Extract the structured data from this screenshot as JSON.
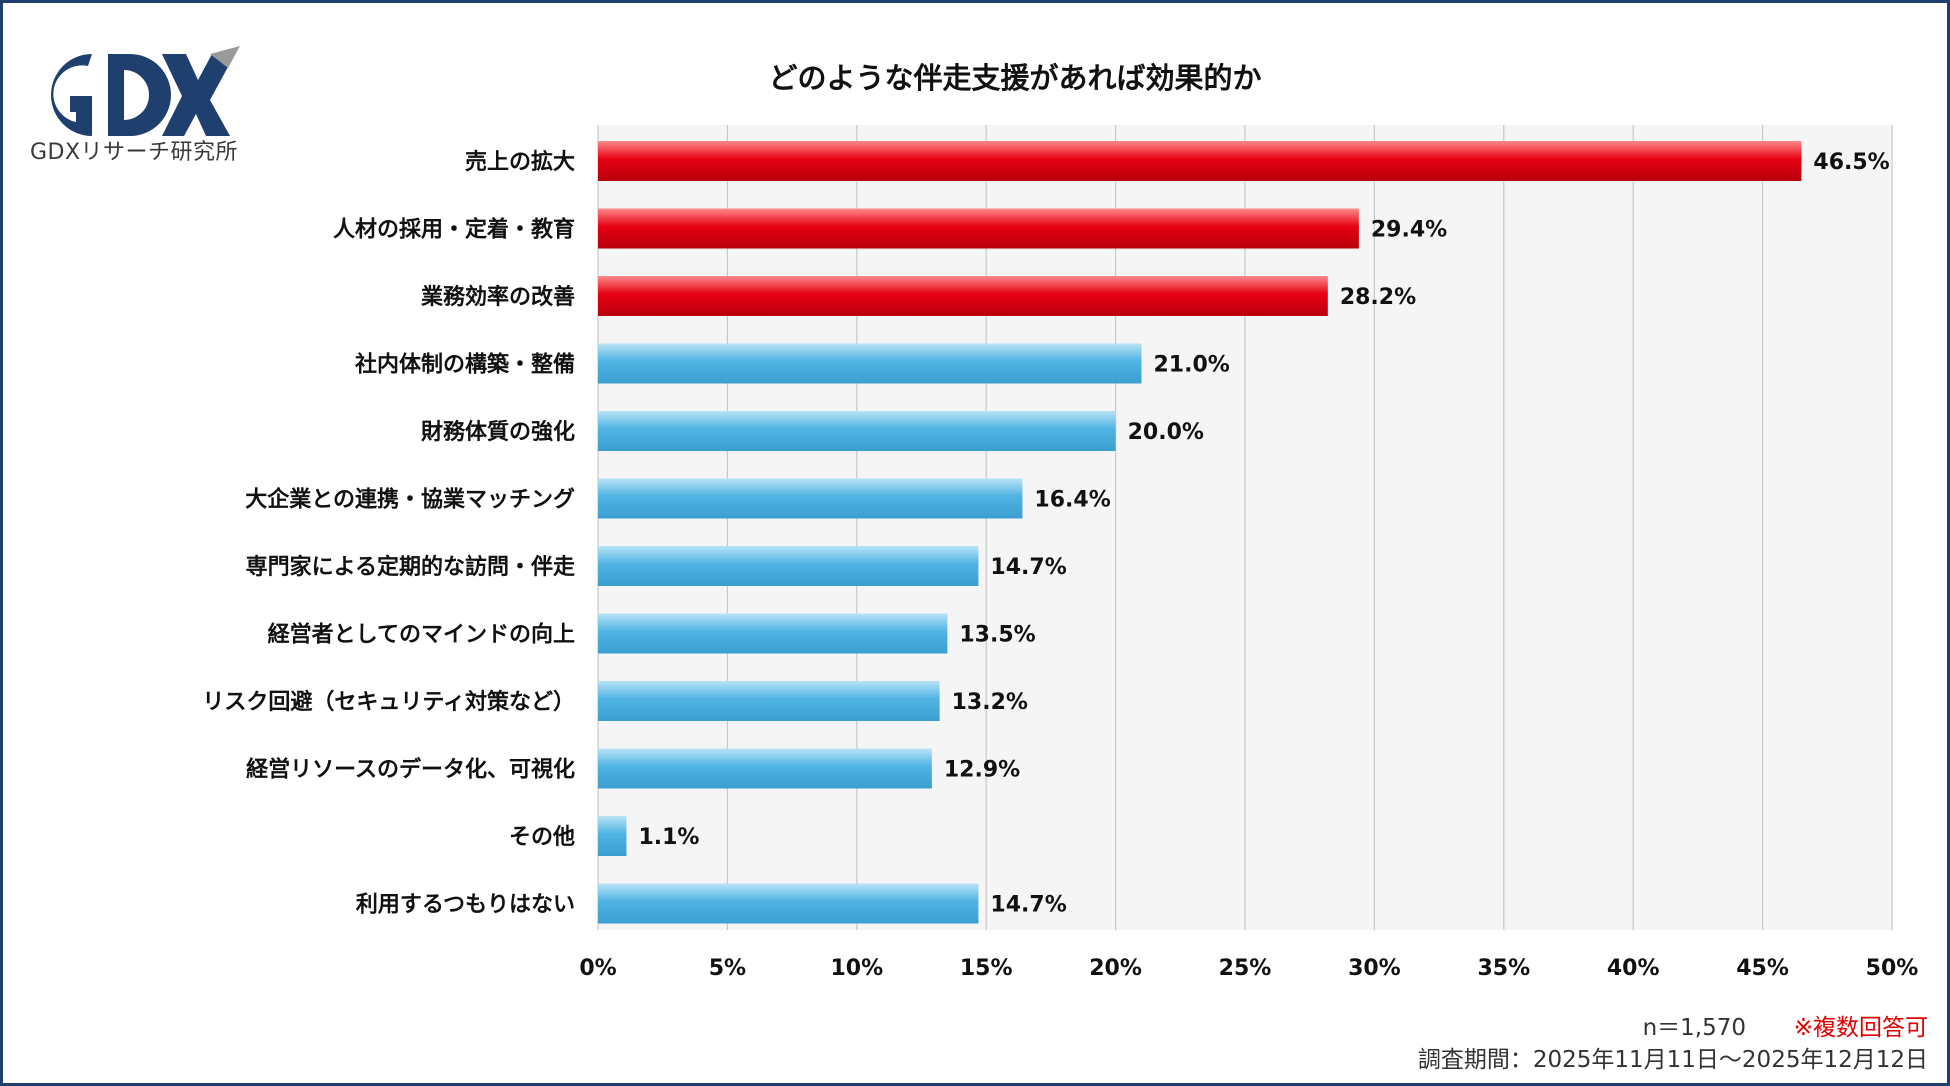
{
  "logo": {
    "mark_text": "GDX",
    "caption": "GDXリサーチ研究所",
    "colors": {
      "primary": "#1f3f6e",
      "accent": "#9a9a9a"
    }
  },
  "notes": {
    "sample_size": "n＝1,570",
    "multiple_answers": "※複数回答可",
    "survey_period": "調査期間：2025年11月11日～2025年12月12日"
  },
  "chart_data": {
    "type": "bar",
    "orientation": "horizontal",
    "title": "どのような伴走支援があれば効果的か",
    "xlabel": "",
    "ylabel": "",
    "xlim": [
      0,
      50
    ],
    "x_ticks": [
      "0%",
      "5%",
      "10%",
      "15%",
      "20%",
      "25%",
      "30%",
      "35%",
      "40%",
      "45%",
      "50%"
    ],
    "grid": "vertical",
    "categories": [
      "売上の拡大",
      "人材の採用・定着・教育",
      "業務効率の改善",
      "社内体制の構築・整備",
      "財務体質の強化",
      "大企業との連携・協業マッチング",
      "専門家による定期的な訪問・伴走",
      "経営者としてのマインドの向上",
      "リスク回避（セキュリティ対策など）",
      "経営リソースのデータ化、可視化",
      "その他",
      "利用するつもりはない"
    ],
    "values": [
      46.5,
      29.4,
      28.2,
      21.0,
      20.0,
      16.4,
      14.7,
      13.5,
      13.2,
      12.9,
      1.1,
      14.7
    ],
    "value_labels": [
      "46.5%",
      "29.4%",
      "28.2%",
      "21.0%",
      "20.0%",
      "16.4%",
      "14.7%",
      "13.5%",
      "13.2%",
      "12.9%",
      "1.1%",
      "14.7%"
    ],
    "highlight_count": 3,
    "colors": {
      "highlight": "#e60012",
      "normal": "#4fb3e3",
      "plot_bg": "#f5f5f5",
      "grid": "#c8c8c8"
    }
  }
}
